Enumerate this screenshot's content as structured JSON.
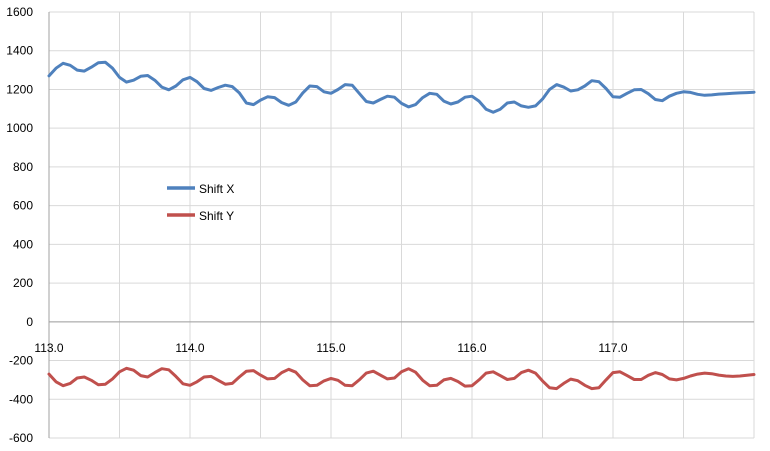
{
  "chart_data": {
    "type": "line",
    "title": "",
    "xlabel": "",
    "ylabel": "",
    "xlim": [
      113.0,
      118.0
    ],
    "ylim": [
      -600,
      1600
    ],
    "x_ticks": [
      113.0,
      114.0,
      115.0,
      116.0,
      117.0
    ],
    "x_tick_labels": [
      "113.0",
      "114.0",
      "115.0",
      "116.0",
      "117.0"
    ],
    "x_grid": [
      113.5,
      114.0,
      114.5,
      115.0,
      115.5,
      116.0,
      116.5,
      117.0,
      117.5,
      118.0
    ],
    "y_ticks": [
      -600,
      -400,
      -200,
      0,
      200,
      400,
      600,
      800,
      1000,
      1200,
      1400,
      1600
    ],
    "y_tick_labels": [
      "-600",
      "-400",
      "-200",
      "0",
      "200",
      "400",
      "600",
      "800",
      "1000",
      "1200",
      "1400",
      "1600"
    ],
    "grid": true,
    "legend_position": "middle-left",
    "series": [
      {
        "name": "Shift X",
        "color": "#4f81bd",
        "x": [
          113.0,
          113.05,
          113.1,
          113.15,
          113.2,
          113.25,
          113.3,
          113.35,
          113.4,
          113.45,
          113.5,
          113.55,
          113.6,
          113.65,
          113.7,
          113.75,
          113.8,
          113.85,
          113.9,
          113.95,
          114.0,
          114.05,
          114.1,
          114.15,
          114.2,
          114.25,
          114.3,
          114.35,
          114.4,
          114.45,
          114.5,
          114.55,
          114.6,
          114.65,
          114.7,
          114.75,
          114.8,
          114.85,
          114.9,
          114.95,
          115.0,
          115.05,
          115.1,
          115.15,
          115.2,
          115.25,
          115.3,
          115.35,
          115.4,
          115.45,
          115.5,
          115.55,
          115.6,
          115.65,
          115.7,
          115.75,
          115.8,
          115.85,
          115.9,
          115.95,
          116.0,
          116.05,
          116.1,
          116.15,
          116.2,
          116.25,
          116.3,
          116.35,
          116.4,
          116.45,
          116.5,
          116.55,
          116.6,
          116.65,
          116.7,
          116.75,
          116.8,
          116.85,
          116.9,
          116.95,
          117.0,
          117.05,
          117.1,
          117.15,
          117.2,
          117.25,
          117.3,
          117.35,
          117.4,
          117.45,
          117.5,
          117.55,
          117.6,
          117.65,
          117.7,
          117.75,
          117.8,
          117.85,
          117.9,
          117.95,
          118.0
        ],
        "values": [
          1270,
          1310,
          1335,
          1325,
          1300,
          1295,
          1315,
          1338,
          1340,
          1310,
          1262,
          1238,
          1248,
          1268,
          1272,
          1248,
          1212,
          1198,
          1218,
          1250,
          1262,
          1240,
          1205,
          1195,
          1210,
          1222,
          1215,
          1182,
          1130,
          1122,
          1145,
          1162,
          1158,
          1132,
          1118,
          1135,
          1182,
          1218,
          1215,
          1188,
          1180,
          1200,
          1225,
          1222,
          1180,
          1138,
          1130,
          1148,
          1165,
          1160,
          1128,
          1110,
          1122,
          1158,
          1180,
          1175,
          1140,
          1125,
          1135,
          1160,
          1165,
          1140,
          1098,
          1082,
          1098,
          1130,
          1135,
          1115,
          1108,
          1115,
          1150,
          1200,
          1225,
          1212,
          1192,
          1198,
          1218,
          1245,
          1240,
          1205,
          1162,
          1160,
          1180,
          1198,
          1200,
          1178,
          1148,
          1142,
          1165,
          1180,
          1188,
          1185,
          1175,
          1170,
          1172,
          1176,
          1178,
          1180,
          1182,
          1184,
          1186
        ]
      },
      {
        "name": "Shift Y",
        "color": "#c0504d",
        "x": [
          113.0,
          113.05,
          113.1,
          113.15,
          113.2,
          113.25,
          113.3,
          113.35,
          113.4,
          113.45,
          113.5,
          113.55,
          113.6,
          113.65,
          113.7,
          113.75,
          113.8,
          113.85,
          113.9,
          113.95,
          114.0,
          114.05,
          114.1,
          114.15,
          114.2,
          114.25,
          114.3,
          114.35,
          114.4,
          114.45,
          114.5,
          114.55,
          114.6,
          114.65,
          114.7,
          114.75,
          114.8,
          114.85,
          114.9,
          114.95,
          115.0,
          115.05,
          115.1,
          115.15,
          115.2,
          115.25,
          115.3,
          115.35,
          115.4,
          115.45,
          115.5,
          115.55,
          115.6,
          115.65,
          115.7,
          115.75,
          115.8,
          115.85,
          115.9,
          115.95,
          116.0,
          116.05,
          116.1,
          116.15,
          116.2,
          116.25,
          116.3,
          116.35,
          116.4,
          116.45,
          116.5,
          116.55,
          116.6,
          116.65,
          116.7,
          116.75,
          116.8,
          116.85,
          116.9,
          116.95,
          117.0,
          117.05,
          117.1,
          117.15,
          117.2,
          117.25,
          117.3,
          117.35,
          117.4,
          117.45,
          117.5,
          117.55,
          117.6,
          117.65,
          117.7,
          117.75,
          117.8,
          117.85,
          117.9,
          117.95,
          118.0
        ],
        "values": [
          -270,
          -310,
          -330,
          -318,
          -290,
          -285,
          -302,
          -325,
          -322,
          -295,
          -258,
          -240,
          -250,
          -278,
          -285,
          -262,
          -242,
          -248,
          -282,
          -320,
          -328,
          -310,
          -285,
          -282,
          -302,
          -322,
          -318,
          -285,
          -255,
          -252,
          -275,
          -295,
          -292,
          -262,
          -245,
          -260,
          -300,
          -330,
          -328,
          -305,
          -292,
          -302,
          -328,
          -330,
          -300,
          -265,
          -255,
          -275,
          -295,
          -290,
          -258,
          -242,
          -260,
          -302,
          -330,
          -328,
          -300,
          -292,
          -308,
          -332,
          -330,
          -300,
          -265,
          -258,
          -278,
          -298,
          -292,
          -262,
          -250,
          -265,
          -305,
          -340,
          -345,
          -318,
          -296,
          -304,
          -328,
          -345,
          -340,
          -300,
          -262,
          -258,
          -278,
          -298,
          -298,
          -276,
          -262,
          -272,
          -295,
          -300,
          -292,
          -280,
          -270,
          -265,
          -268,
          -275,
          -280,
          -282,
          -280,
          -276,
          -272
        ]
      }
    ]
  }
}
